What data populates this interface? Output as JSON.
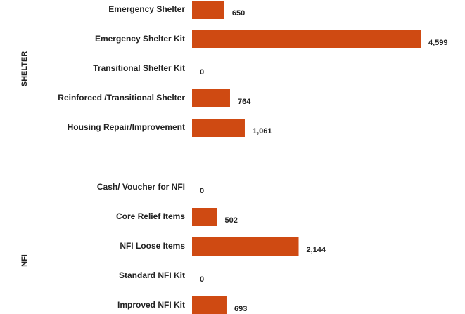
{
  "chart_data": {
    "type": "bar",
    "color": "#cf4a12",
    "groups": [
      {
        "name": "SHELTER",
        "categories": [
          "Emergency Shelter",
          "Emergency Shelter Kit",
          "Transitional Shelter Kit",
          "Reinforced /Transitional Shelter",
          "Housing Repair/Improvement"
        ],
        "values": [
          650,
          4599,
          0,
          764,
          1061
        ],
        "value_labels": [
          "650",
          "4,599",
          "0",
          "764",
          "1,061"
        ]
      },
      {
        "name": "NFI",
        "categories": [
          "Cash/ Voucher for NFI",
          "Core Relief Items",
          "NFI Loose Items",
          "Standard NFI Kit",
          "Improved NFI Kit"
        ],
        "values": [
          0,
          502,
          2144,
          0,
          693
        ],
        "value_labels": [
          "0",
          "502",
          "2,144",
          "0",
          "693"
        ]
      }
    ]
  }
}
